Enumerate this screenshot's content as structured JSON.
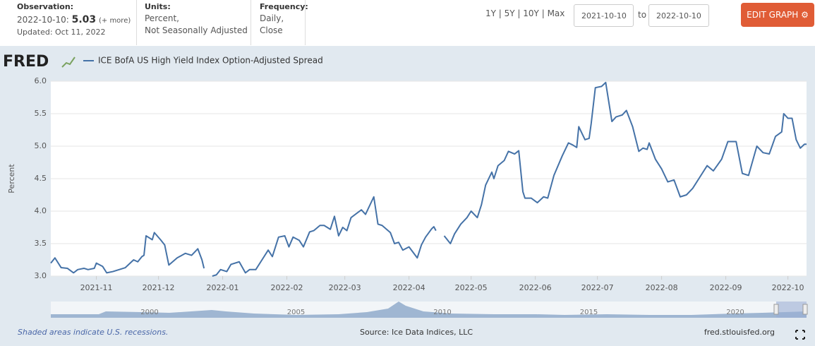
{
  "header": {
    "observation_label": "Observation:",
    "observation_date": "2022-10-10:",
    "observation_value": 5.03,
    "more": "(+ more)",
    "updated": "Updated: Oct 11, 2022",
    "units_label": "Units:",
    "units": [
      "Percent,",
      "Not Seasonally Adjusted"
    ],
    "frequency_label": "Frequency:",
    "frequency": [
      "Daily,",
      "Close"
    ],
    "ranges": [
      "1Y",
      "5Y",
      "10Y",
      "Max"
    ],
    "start_date": "2021-10-10",
    "to": "to",
    "end_date": "2022-10-10",
    "edit_button": "EDIT GRAPH"
  },
  "logo": "FRED",
  "chart_data": {
    "type": "line",
    "ylabel": "Percent",
    "grid": true,
    "xlim": [
      "2021-10-10",
      "2022-10-10"
    ],
    "xticks": [
      {
        "value": "2021-11-01",
        "label": "2021-11"
      },
      {
        "value": "2021-12-01",
        "label": "2021-12"
      },
      {
        "value": "2022-01-01",
        "label": "2022-01"
      },
      {
        "value": "2022-02-01",
        "label": "2022-02"
      },
      {
        "value": "2022-03-01",
        "label": "2022-03"
      },
      {
        "value": "2022-04-01",
        "label": "2022-04"
      },
      {
        "value": "2022-05-01",
        "label": "2022-05"
      },
      {
        "value": "2022-06-01",
        "label": "2022-06"
      },
      {
        "value": "2022-07-01",
        "label": "2022-07"
      },
      {
        "value": "2022-08-01",
        "label": "2022-08"
      },
      {
        "value": "2022-09-01",
        "label": "2022-09"
      },
      {
        "value": "2022-10-01",
        "label": "2022-10"
      }
    ],
    "ylim": [
      3,
      6
    ],
    "yticks": [
      {
        "value": 3,
        "label": "3.0"
      },
      3.5,
      {
        "value": 4,
        "label": "4.0"
      },
      4.5,
      {
        "value": 5,
        "label": "5.0"
      },
      5.5,
      {
        "value": 6,
        "label": "6.0"
      }
    ],
    "series": [
      {
        "name": "ICE BofA US High Yield Index Option-Adjusted Spread",
        "color": "#4572a7",
        "x": [
          "2021-10-10",
          "2021-10-12",
          "2021-10-15",
          "2021-10-18",
          "2021-10-21",
          "2021-10-23",
          "2021-10-26",
          "2021-10-28",
          "2021-10-31",
          "2021-11-01",
          "2021-11-04",
          "2021-11-06",
          "2021-11-09",
          "2021-11-12",
          "2021-11-15",
          "2021-11-19",
          "2021-11-21",
          "2021-11-23",
          "2021-11-24",
          "2021-11-25",
          "2021-11-28",
          "2021-11-29",
          "2021-12-02",
          "2021-12-04",
          "2021-12-06",
          "2021-12-10",
          "2021-12-14",
          "2021-12-17",
          "2021-12-20",
          "2021-12-22",
          "2021-12-23",
          "2021-12-25",
          "2021-12-27",
          "2021-12-29",
          "2021-12-31",
          "2022-01-03",
          "2022-01-05",
          "2022-01-09",
          "2022-01-12",
          "2022-01-14",
          "2022-01-17",
          "2022-01-20",
          "2022-01-23",
          "2022-01-25",
          "2022-01-28",
          "2022-01-31",
          "2022-02-02",
          "2022-02-04",
          "2022-02-07",
          "2022-02-09",
          "2022-02-12",
          "2022-02-14",
          "2022-02-17",
          "2022-02-19",
          "2022-02-22",
          "2022-02-24",
          "2022-02-26",
          "2022-02-28",
          "2022-03-02",
          "2022-03-04",
          "2022-03-09",
          "2022-03-11",
          "2022-03-15",
          "2022-03-17",
          "2022-03-19",
          "2022-03-23",
          "2022-03-25",
          "2022-03-27",
          "2022-03-29",
          "2022-04-01",
          "2022-04-05",
          "2022-04-07",
          "2022-04-09",
          "2022-04-12",
          "2022-04-13",
          "2022-04-14",
          "2022-04-16",
          "2022-04-18",
          "2022-04-21",
          "2022-04-23",
          "2022-04-26",
          "2022-04-29",
          "2022-05-01",
          "2022-05-04",
          "2022-05-06",
          "2022-05-08",
          "2022-05-11",
          "2022-05-12",
          "2022-05-14",
          "2022-05-17",
          "2022-05-19",
          "2022-05-22",
          "2022-05-24",
          "2022-05-26",
          "2022-05-27",
          "2022-05-30",
          "2022-06-02",
          "2022-06-05",
          "2022-06-07",
          "2022-06-10",
          "2022-06-14",
          "2022-06-17",
          "2022-06-19",
          "2022-06-21",
          "2022-06-22",
          "2022-06-25",
          "2022-06-27",
          "2022-06-28",
          "2022-06-30",
          "2022-07-03",
          "2022-07-05",
          "2022-07-08",
          "2022-07-10",
          "2022-07-13",
          "2022-07-15",
          "2022-07-18",
          "2022-07-21",
          "2022-07-23",
          "2022-07-25",
          "2022-07-26",
          "2022-07-29",
          "2022-08-01",
          "2022-08-04",
          "2022-08-07",
          "2022-08-10",
          "2022-08-13",
          "2022-08-16",
          "2022-08-19",
          "2022-08-23",
          "2022-08-26",
          "2022-08-30",
          "2022-09-02",
          "2022-09-06",
          "2022-09-09",
          "2022-09-12",
          "2022-09-16",
          "2022-09-19",
          "2022-09-22",
          "2022-09-25",
          "2022-09-28",
          "2022-09-29",
          "2022-10-01",
          "2022-10-03",
          "2022-10-05",
          "2022-10-07",
          "2022-10-09",
          "2022-10-10"
        ],
        "values": [
          3.2,
          3.28,
          3.13,
          3.12,
          3.05,
          3.1,
          3.12,
          3.1,
          3.12,
          3.2,
          3.15,
          3.05,
          3.07,
          3.1,
          3.13,
          3.25,
          3.22,
          3.3,
          3.32,
          3.62,
          3.56,
          3.67,
          3.56,
          3.48,
          3.17,
          3.28,
          3.35,
          3.32,
          3.42,
          3.25,
          3.12,
          null,
          3.0,
          3.02,
          3.1,
          3.07,
          3.18,
          3.22,
          3.05,
          3.1,
          3.1,
          3.25,
          3.4,
          3.3,
          3.6,
          3.62,
          3.45,
          3.6,
          3.55,
          3.45,
          3.68,
          3.7,
          3.78,
          3.78,
          3.72,
          3.92,
          3.62,
          3.75,
          3.7,
          3.9,
          4.02,
          3.95,
          4.22,
          3.8,
          3.78,
          3.67,
          3.5,
          3.52,
          3.4,
          3.45,
          3.28,
          3.48,
          3.6,
          3.73,
          3.76,
          3.7,
          null,
          3.62,
          3.5,
          3.65,
          3.8,
          3.9,
          4.0,
          3.9,
          4.1,
          4.4,
          4.6,
          4.5,
          4.7,
          4.78,
          4.92,
          4.88,
          4.93,
          4.3,
          4.2,
          4.2,
          4.13,
          4.22,
          4.2,
          4.55,
          4.85,
          5.05,
          5.02,
          4.98,
          5.3,
          5.1,
          5.12,
          5.35,
          5.9,
          5.92,
          5.98,
          5.38,
          5.45,
          5.48,
          5.55,
          5.3,
          4.92,
          4.97,
          4.95,
          5.05,
          4.8,
          4.65,
          4.45,
          4.48,
          4.22,
          4.25,
          4.35,
          4.5,
          4.7,
          4.62,
          4.8,
          5.07,
          5.07,
          4.58,
          4.55,
          5.0,
          4.9,
          4.88,
          5.15,
          5.22,
          5.5,
          5.43,
          5.43,
          5.1,
          4.97,
          5.03,
          5.03
        ]
      }
    ]
  },
  "navigator": {
    "year_labels": [
      2000,
      2005,
      2010,
      2015,
      2020
    ]
  },
  "footer": {
    "recessions": "Shaded areas indicate U.S. recessions.",
    "source": "Source: Ice Data Indices, LLC",
    "site": "fred.stlouisfed.org"
  }
}
